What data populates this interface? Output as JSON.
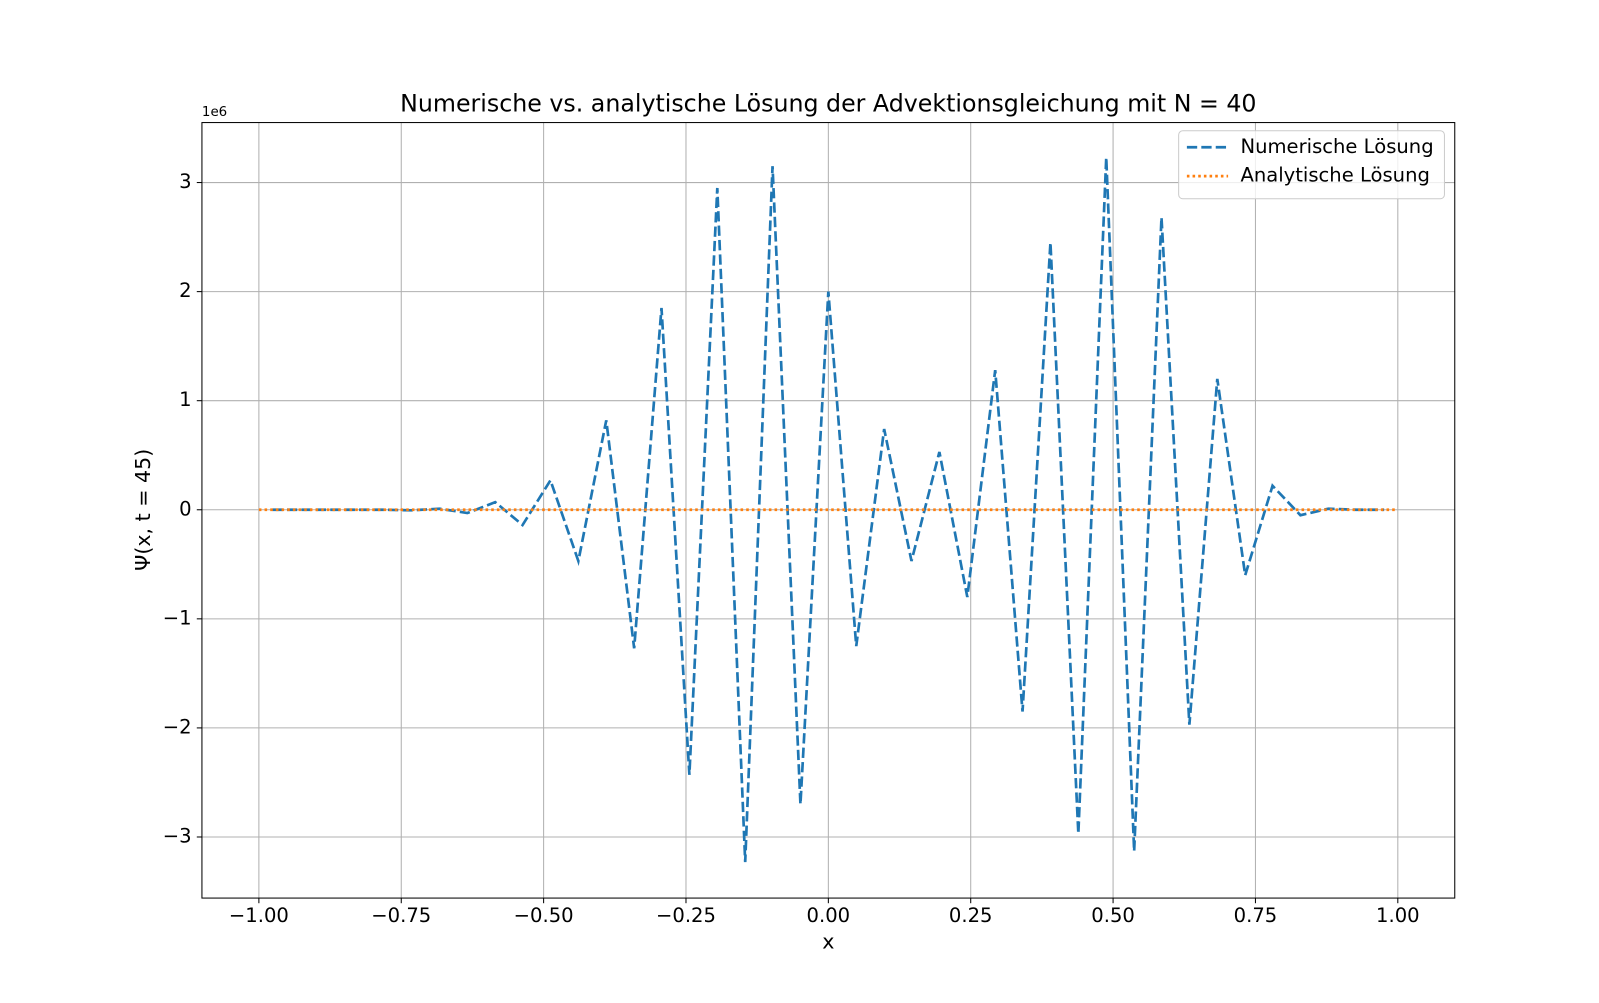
{
  "chart_data": {
    "type": "line",
    "title": "Numerische vs. analytische Lösung der Advektionsgleichung mit N = 40",
    "xlabel": "x",
    "ylabel": "Ψ(x, t = 45)",
    "y_offset_label": "1e6",
    "xlim": [
      -1.1,
      1.1
    ],
    "ylim": [
      -3.56,
      3.55
    ],
    "xticks": [
      {
        "value": -1,
        "label": "−1.00"
      },
      {
        "value": -0.75,
        "label": "−0.75"
      },
      {
        "value": -0.5,
        "label": "−0.50"
      },
      {
        "value": -0.25,
        "label": "−0.25"
      },
      {
        "value": 0,
        "label": "0.00"
      },
      {
        "value": 0.25,
        "label": "0.25"
      },
      {
        "value": 0.5,
        "label": "0.50"
      },
      {
        "value": 0.75,
        "label": "0.75"
      },
      {
        "value": 1,
        "label": "1.00"
      }
    ],
    "yticks": [
      {
        "value": -3,
        "label": "−3"
      },
      {
        "value": -2,
        "label": "−2"
      },
      {
        "value": -1,
        "label": "−1"
      },
      0,
      1,
      2,
      3
    ],
    "grid": true,
    "legend": "upper right",
    "series": [
      {
        "name": "Numerische Lösung",
        "color": "#1f77b4",
        "style": "dashed",
        "x": [
          -0.976,
          -0.927,
          -0.878,
          -0.829,
          -0.78,
          -0.732,
          -0.683,
          -0.634,
          -0.585,
          -0.537,
          -0.488,
          -0.439,
          -0.39,
          -0.341,
          -0.293,
          -0.244,
          -0.195,
          -0.146,
          -0.098,
          -0.049,
          0.0,
          0.049,
          0.098,
          0.146,
          0.195,
          0.244,
          0.293,
          0.341,
          0.39,
          0.439,
          0.488,
          0.537,
          0.585,
          0.634,
          0.683,
          0.732,
          0.78,
          0.829,
          0.878,
          0.927,
          0.976
        ],
        "values": [
          0,
          0,
          0,
          0,
          0,
          -0.005,
          0.01,
          -0.03,
          0.07,
          -0.14,
          0.27,
          -0.47,
          0.82,
          -1.27,
          1.85,
          -2.43,
          2.95,
          -3.23,
          3.15,
          -2.7,
          2.0,
          -1.25,
          0.74,
          -0.47,
          0.53,
          -0.8,
          1.28,
          -1.85,
          2.45,
          -2.97,
          3.23,
          -3.13,
          2.68,
          -1.97,
          1.2,
          -0.6,
          0.22,
          -0.05,
          0.01,
          0,
          0
        ]
      },
      {
        "name": "Analytische Lösung",
        "color": "#ff7f0e",
        "style": "dotted",
        "x": [
          -1.0,
          -0.95,
          -0.9,
          -0.85,
          -0.8,
          -0.75,
          -0.7,
          -0.65,
          -0.6,
          -0.55,
          -0.5,
          -0.45,
          -0.4,
          -0.35,
          -0.3,
          -0.25,
          -0.2,
          -0.15,
          -0.1,
          -0.05,
          0.0,
          0.05,
          0.1,
          0.15,
          0.2,
          0.25,
          0.3,
          0.35,
          0.4,
          0.45,
          0.5,
          0.55,
          0.6,
          0.65,
          0.7,
          0.75,
          0.8,
          0.85,
          0.9,
          0.95,
          1.0
        ],
        "values": [
          0,
          0,
          0,
          0,
          0,
          0,
          0,
          0,
          0,
          0,
          0,
          0,
          0,
          0,
          0,
          0,
          0,
          0,
          0,
          0,
          0,
          0,
          0,
          0,
          0,
          0,
          0,
          0,
          0,
          0,
          0,
          0,
          0,
          0,
          0,
          0,
          0,
          0,
          0,
          0,
          0
        ]
      }
    ]
  }
}
